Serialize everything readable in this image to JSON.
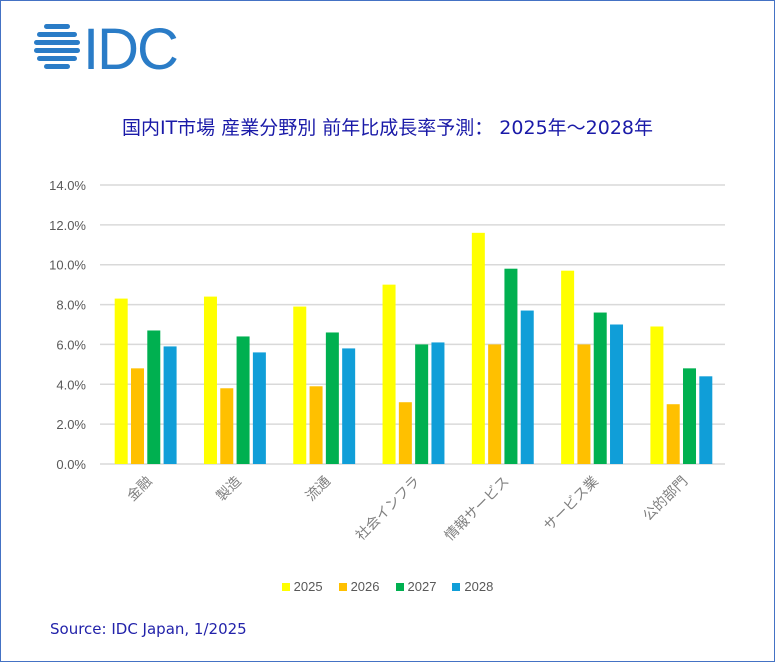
{
  "logo": {
    "text": "IDC",
    "color": "#2a7cc7",
    "icon": "globe-stripes-icon"
  },
  "source": "Source: IDC Japan, 1/2025",
  "frame_color": "#4472c4",
  "chart_data": {
    "type": "bar",
    "title": "国内IT市場 産業分野別 前年比成長率予測： 2025年～2028年",
    "xlabel": "",
    "ylabel": "",
    "ylim": [
      0,
      14
    ],
    "yticks": [
      0,
      2,
      4,
      6,
      8,
      10,
      12,
      14
    ],
    "ytick_labels": [
      "0.0%",
      "2.0%",
      "4.0%",
      "6.0%",
      "8.0%",
      "10.0%",
      "12.0%",
      "14.0%"
    ],
    "grid": true,
    "legend_position": "bottom",
    "categories": [
      "金融",
      "製造",
      "流通",
      "社会インフラ",
      "情報サービス",
      "サービス業",
      "公的部門"
    ],
    "series": [
      {
        "name": "2025",
        "color": "#ffff00",
        "values": [
          8.3,
          8.4,
          7.9,
          9.0,
          11.6,
          9.7,
          6.9
        ]
      },
      {
        "name": "2026",
        "color": "#ffc000",
        "values": [
          4.8,
          3.8,
          3.9,
          3.1,
          6.0,
          6.0,
          3.0
        ]
      },
      {
        "name": "2027",
        "color": "#00b050",
        "values": [
          6.7,
          6.4,
          6.6,
          6.0,
          9.8,
          7.6,
          4.8
        ]
      },
      {
        "name": "2028",
        "color": "#109ed8",
        "values": [
          5.9,
          5.6,
          5.8,
          6.1,
          7.7,
          7.0,
          4.4
        ]
      }
    ]
  }
}
